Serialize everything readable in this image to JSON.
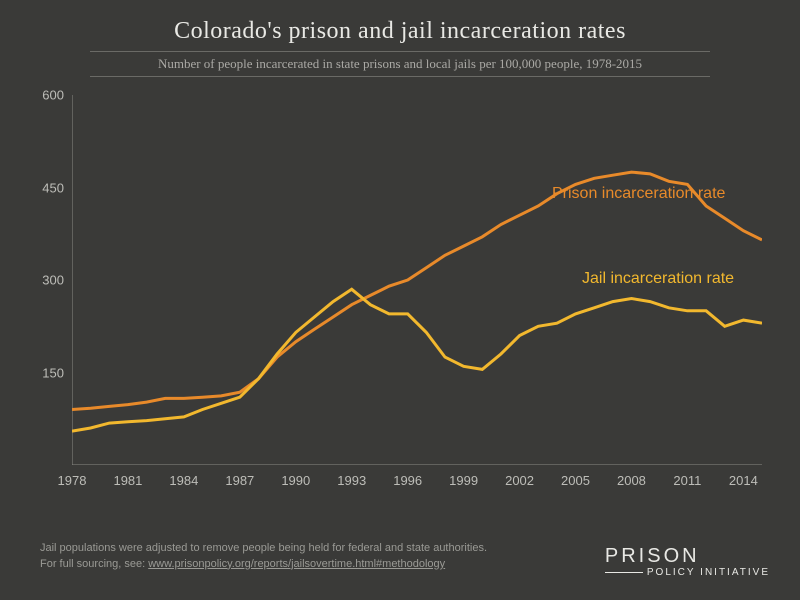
{
  "title": "Colorado's prison and jail incarceration rates",
  "subtitle": "Number of people incarcerated in state prisons and local jails per 100,000 people, 1978-2015",
  "chart": {
    "type": "line",
    "background_color": "#3a3a38",
    "axis_color": "#8a8a85",
    "tick_label_color": "#bdbdb8",
    "tick_fontsize": 13,
    "line_width": 3,
    "xlim": [
      1978,
      2015
    ],
    "ylim": [
      0,
      600
    ],
    "y_ticks": [
      150,
      300,
      450,
      600
    ],
    "x_ticks": [
      1978,
      1981,
      1984,
      1987,
      1990,
      1993,
      1996,
      1999,
      2002,
      2005,
      2008,
      2011,
      2014
    ],
    "series": [
      {
        "name": "Prison incarceration rate",
        "label": "Prison incarceration rate",
        "color": "#e88a2a",
        "label_x": 480,
        "label_y": 90,
        "years": [
          1978,
          1979,
          1980,
          1981,
          1982,
          1983,
          1984,
          1985,
          1986,
          1987,
          1988,
          1989,
          1990,
          1991,
          1992,
          1993,
          1994,
          1995,
          1996,
          1997,
          1998,
          1999,
          2000,
          2001,
          2002,
          2003,
          2004,
          2005,
          2006,
          2007,
          2008,
          2009,
          2010,
          2011,
          2012,
          2013,
          2014,
          2015
        ],
        "values": [
          90,
          92,
          95,
          98,
          102,
          108,
          108,
          110,
          112,
          118,
          140,
          175,
          200,
          220,
          240,
          260,
          275,
          290,
          300,
          320,
          340,
          355,
          370,
          390,
          405,
          420,
          440,
          455,
          465,
          470,
          475,
          472,
          460,
          455,
          420,
          400,
          380,
          365
        ]
      },
      {
        "name": "Jail incarceration rate",
        "label": "Jail incarceration rate",
        "color": "#f2b82e",
        "label_x": 510,
        "label_y": 175,
        "years": [
          1978,
          1979,
          1980,
          1981,
          1982,
          1983,
          1984,
          1985,
          1986,
          1987,
          1988,
          1989,
          1990,
          1991,
          1992,
          1993,
          1994,
          1995,
          1996,
          1997,
          1998,
          1999,
          2000,
          2001,
          2002,
          2003,
          2004,
          2005,
          2006,
          2007,
          2008,
          2009,
          2010,
          2011,
          2012,
          2013,
          2014,
          2015
        ],
        "values": [
          55,
          60,
          68,
          70,
          72,
          75,
          78,
          90,
          100,
          110,
          140,
          180,
          215,
          240,
          265,
          285,
          260,
          245,
          245,
          215,
          175,
          160,
          155,
          180,
          210,
          225,
          230,
          245,
          255,
          265,
          270,
          265,
          255,
          250,
          250,
          225,
          235,
          230
        ]
      }
    ]
  },
  "footnote_line1": "Jail populations were adjusted to remove people being held for federal and state authorities.",
  "footnote_line2_prefix": "For full sourcing, see: ",
  "footnote_link": "www.prisonpolicy.org/reports/jailsovertime.html#methodology",
  "logo_top": "PRISON",
  "logo_bottom": "POLICY INITIATIVE"
}
